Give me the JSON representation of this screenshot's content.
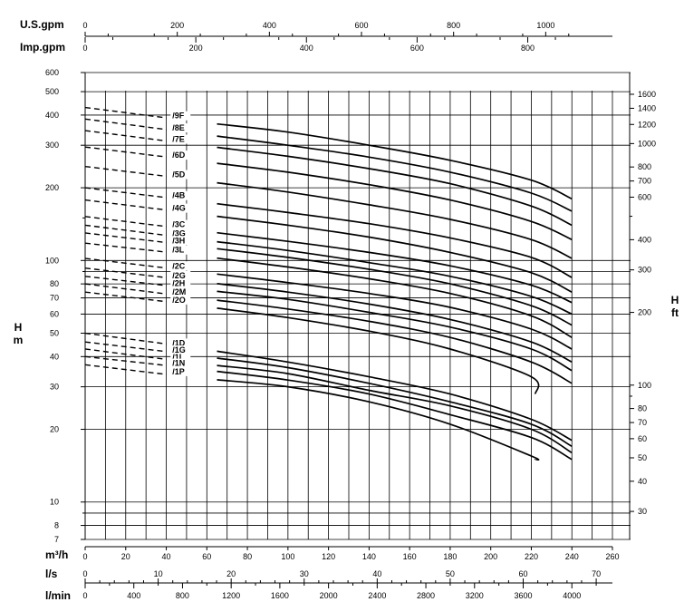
{
  "chart_data": {
    "type": "line",
    "yscale": "log",
    "grid": true,
    "axes": {
      "left": {
        "label_line1": "H",
        "label_line2": "m",
        "ylim": [
          7,
          600
        ],
        "ticks": [
          "7",
          "8",
          "10",
          "20",
          "30",
          "40",
          "50",
          "60",
          "70",
          "80",
          "100",
          "200",
          "300",
          "400",
          "500",
          "600"
        ]
      },
      "right": {
        "label_line1": "H",
        "label_line2": "ft",
        "ticks": [
          "30",
          "40",
          "50",
          "60",
          "70",
          "80",
          "100",
          "200",
          "300",
          "400",
          "600",
          "700",
          "800",
          "1000",
          "1200",
          "1400",
          "1600"
        ]
      },
      "bottom_main": {
        "label": "m³/h",
        "xlim": [
          0,
          260
        ],
        "ticks": [
          "0",
          "20",
          "40",
          "60",
          "80",
          "100",
          "120",
          "140",
          "160",
          "180",
          "200",
          "220",
          "240",
          "260"
        ]
      },
      "bottom_ls": {
        "label": "l/s",
        "ticks": [
          "0",
          "10",
          "20",
          "30",
          "40",
          "50",
          "60",
          "70"
        ]
      },
      "bottom_lmin": {
        "label": "l/min",
        "ticks": [
          "0",
          "400",
          "800",
          "1200",
          "1600",
          "2000",
          "2400",
          "2800",
          "3200",
          "3600",
          "4000"
        ]
      },
      "top_usgpm": {
        "label": "U.S.gpm",
        "ticks": [
          "0",
          "200",
          "400",
          "600",
          "800",
          "1000"
        ]
      },
      "top_impgpm": {
        "label": "Imp.gpm",
        "ticks": [
          "0",
          "200",
          "400",
          "600",
          "800"
        ]
      }
    },
    "series": [
      {
        "name": "/9F",
        "y0": 430,
        "h50": 380,
        "h100": 340,
        "h140": 300,
        "h180": 260,
        "h220": 215,
        "x_end": 240,
        "h_end": 180
      },
      {
        "name": "/8E",
        "y0": 385,
        "h50": 340,
        "h100": 300,
        "h140": 268,
        "h180": 232,
        "h220": 190,
        "x_end": 240,
        "h_end": 160
      },
      {
        "name": "/7E",
        "y0": 345,
        "h50": 305,
        "h100": 270,
        "h140": 240,
        "h180": 208,
        "h220": 168,
        "x_end": 240,
        "h_end": 140
      },
      {
        "name": "/6D",
        "y0": 295,
        "h50": 262,
        "h100": 232,
        "h140": 206,
        "h180": 178,
        "h220": 145,
        "x_end": 240,
        "h_end": 122
      },
      {
        "name": "/5D",
        "y0": 245,
        "h50": 218,
        "h100": 192,
        "h140": 170,
        "h180": 148,
        "h220": 122,
        "x_end": 240,
        "h_end": 102
      },
      {
        "name": "/4B",
        "y0": 200,
        "h50": 178,
        "h100": 158,
        "h140": 142,
        "h180": 124,
        "h220": 103,
        "x_end": 240,
        "h_end": 85
      },
      {
        "name": "/4G",
        "y0": 178,
        "h50": 158,
        "h100": 140,
        "h140": 125,
        "h180": 108,
        "h220": 89,
        "x_end": 240,
        "h_end": 74
      },
      {
        "name": "/3C",
        "y0": 152,
        "h50": 135,
        "h100": 120,
        "h140": 108,
        "h180": 95,
        "h220": 79,
        "x_end": 240,
        "h_end": 67
      },
      {
        "name": "/3G",
        "y0": 140,
        "h50": 124,
        "h100": 110,
        "h140": 98,
        "h180": 86,
        "h220": 71,
        "x_end": 240,
        "h_end": 60
      },
      {
        "name": "/3H",
        "y0": 130,
        "h50": 116,
        "h100": 103,
        "h140": 92,
        "h180": 80,
        "h220": 65,
        "x_end": 240,
        "h_end": 54
      },
      {
        "name": "/3L",
        "y0": 118,
        "h50": 106,
        "h100": 94,
        "h140": 84,
        "h180": 73,
        "h220": 59,
        "x_end": 240,
        "h_end": 48
      },
      {
        "name": "/2C",
        "y0": 102,
        "h50": 91,
        "h100": 81,
        "h140": 73,
        "h180": 64,
        "h220": 52,
        "x_end": 240,
        "h_end": 43
      },
      {
        "name": "/2G",
        "y0": 93,
        "h50": 83,
        "h100": 74,
        "h140": 66,
        "h180": 57,
        "h220": 46,
        "x_end": 240,
        "h_end": 38
      },
      {
        "name": "/2H",
        "y0": 86,
        "h50": 77,
        "h100": 69,
        "h140": 61,
        "h180": 53,
        "h220": 43,
        "x_end": 240,
        "h_end": 35
      },
      {
        "name": "/2M",
        "y0": 80,
        "h50": 71,
        "h100": 63,
        "h140": 56,
        "h180": 48,
        "h220": 38,
        "x_end": 240,
        "h_end": 31
      },
      {
        "name": "/2O",
        "y0": 74,
        "h50": 66,
        "h100": 58,
        "h140": 51,
        "h180": 43,
        "h220": 33,
        "x_end": 222,
        "h_end": 28
      },
      {
        "name": "/1D",
        "y0": 50,
        "h50": 44,
        "h100": 38,
        "h140": 33,
        "h180": 28,
        "h220": 22,
        "x_end": 240,
        "h_end": 18
      },
      {
        "name": "/1G",
        "y0": 46,
        "h50": 41,
        "h100": 36,
        "h140": 31,
        "h180": 26,
        "h220": 21,
        "x_end": 240,
        "h_end": 17
      },
      {
        "name": "/1I",
        "y0": 43,
        "h50": 38,
        "h100": 34,
        "h140": 29,
        "h180": 25,
        "h220": 20,
        "x_end": 240,
        "h_end": 16
      },
      {
        "name": "/1N",
        "y0": 40,
        "h50": 36,
        "h100": 32,
        "h140": 28,
        "h180": 23,
        "h220": 18.5,
        "x_end": 240,
        "h_end": 15
      },
      {
        "name": "/1P",
        "y0": 37,
        "h50": 33,
        "h100": 30,
        "h140": 26,
        "h180": 21,
        "h220": 15.5,
        "x_end": 222,
        "h_end": 15
      }
    ]
  }
}
